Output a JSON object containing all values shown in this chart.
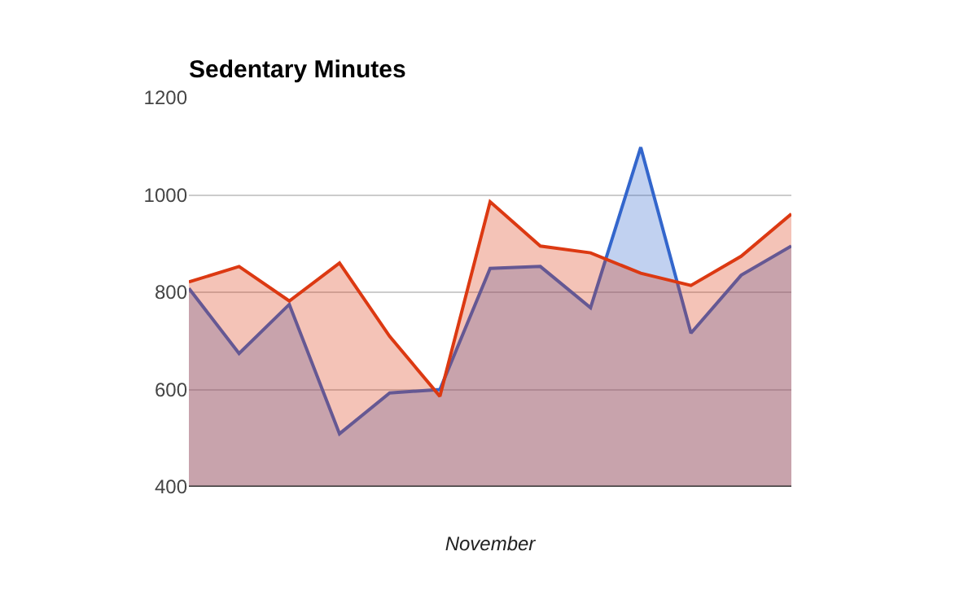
{
  "chart_data": {
    "type": "area",
    "title": "Sedentary Minutes",
    "xlabel": "November",
    "categories": [
      null,
      null,
      null,
      null,
      null,
      null,
      null,
      null,
      null,
      null,
      null,
      null,
      null
    ],
    "series": [
      {
        "color": "#3366cc",
        "values": [
          808,
          674,
          775,
          509,
          593,
          600,
          849,
          853,
          768,
          1098,
          716,
          835,
          895
        ]
      },
      {
        "color": "#dc3912",
        "values": [
          821,
          853,
          782,
          860,
          709,
          586,
          986,
          895,
          881,
          839,
          814,
          874,
          961
        ]
      }
    ],
    "ylim": [
      400,
      1200
    ],
    "yticks": [
      400,
      600,
      800,
      1000,
      1200
    ],
    "grid": "y"
  }
}
